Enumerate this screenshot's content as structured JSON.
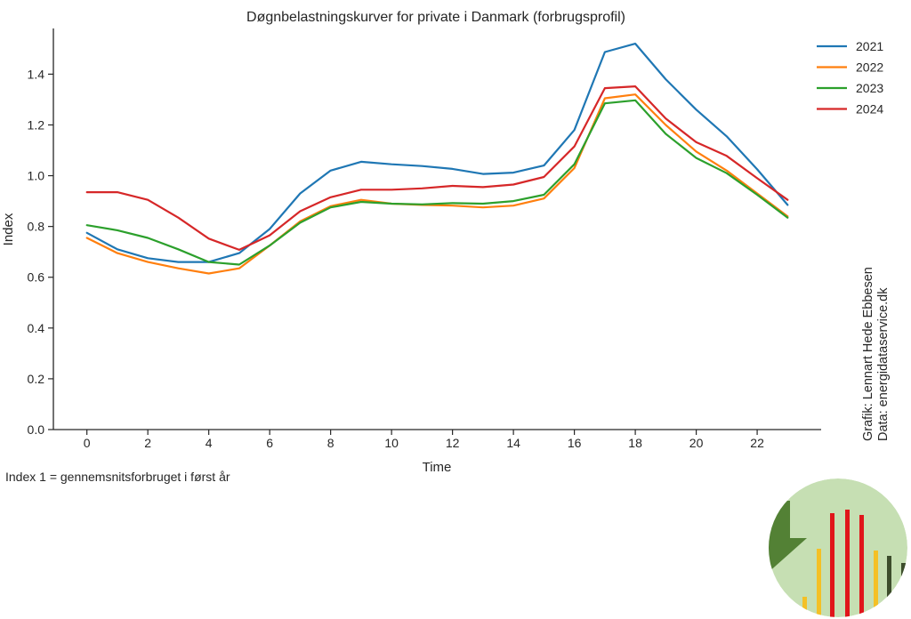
{
  "chart_data": {
    "type": "line",
    "title": "Døgnbelastningskurver for private i Danmark (forbrugsprofil)",
    "xlabel": "Time",
    "ylabel": "Index",
    "xlim": [
      -1.1,
      24.1
    ],
    "ylim": [
      0.0,
      1.58
    ],
    "xticks": [
      0,
      2,
      4,
      6,
      8,
      10,
      12,
      14,
      16,
      18,
      20,
      22
    ],
    "yticks": [
      0.0,
      0.2,
      0.4,
      0.6,
      0.8,
      1.0,
      1.2,
      1.4
    ],
    "ytick_labels": [
      "0.0",
      "0.2",
      "0.4",
      "0.6",
      "0.8",
      "1.0",
      "1.2",
      "1.4"
    ],
    "legend": "top-right",
    "grid": false,
    "x": [
      0,
      1,
      2,
      3,
      4,
      5,
      6,
      7,
      8,
      9,
      10,
      11,
      12,
      13,
      14,
      15,
      16,
      17,
      18,
      19,
      20,
      21,
      22,
      23
    ],
    "series": [
      {
        "name": "2021",
        "color": "#1f77b4",
        "values": [
          0.775,
          0.71,
          0.675,
          0.66,
          0.66,
          0.695,
          0.79,
          0.93,
          1.02,
          1.055,
          1.045,
          1.038,
          1.027,
          1.007,
          1.012,
          1.04,
          1.18,
          1.487,
          1.52,
          1.38,
          1.26,
          1.155,
          1.025,
          0.885
        ]
      },
      {
        "name": "2022",
        "color": "#ff7f0e",
        "values": [
          0.755,
          0.695,
          0.66,
          0.635,
          0.615,
          0.635,
          0.725,
          0.82,
          0.88,
          0.905,
          0.89,
          0.885,
          0.882,
          0.875,
          0.882,
          0.91,
          1.03,
          1.305,
          1.32,
          1.2,
          1.095,
          1.02,
          0.93,
          0.84
        ]
      },
      {
        "name": "2023",
        "color": "#2ca02c",
        "values": [
          0.805,
          0.785,
          0.755,
          0.71,
          0.66,
          0.65,
          0.725,
          0.815,
          0.875,
          0.897,
          0.89,
          0.887,
          0.892,
          0.89,
          0.9,
          0.925,
          1.045,
          1.285,
          1.297,
          1.165,
          1.07,
          1.01,
          0.925,
          0.835
        ]
      },
      {
        "name": "2024",
        "color": "#d62728",
        "values": [
          0.935,
          0.935,
          0.905,
          0.835,
          0.752,
          0.708,
          0.765,
          0.86,
          0.915,
          0.945,
          0.945,
          0.95,
          0.96,
          0.955,
          0.965,
          0.995,
          1.115,
          1.345,
          1.352,
          1.225,
          1.132,
          1.078,
          0.99,
          0.905
        ]
      }
    ]
  },
  "footnote": "Index 1 = gennemsnitsforbruget i først år",
  "credit": {
    "line1": "Grafik: Lennart Hede Ebbesen",
    "line2": "Data: energidataservice.dk"
  },
  "logo": {
    "circle_color": "#c6dfb3",
    "wedge_color": "#538135",
    "bar_colors": [
      "#f4c025",
      "#e0161b",
      "#3d4d2c"
    ]
  }
}
